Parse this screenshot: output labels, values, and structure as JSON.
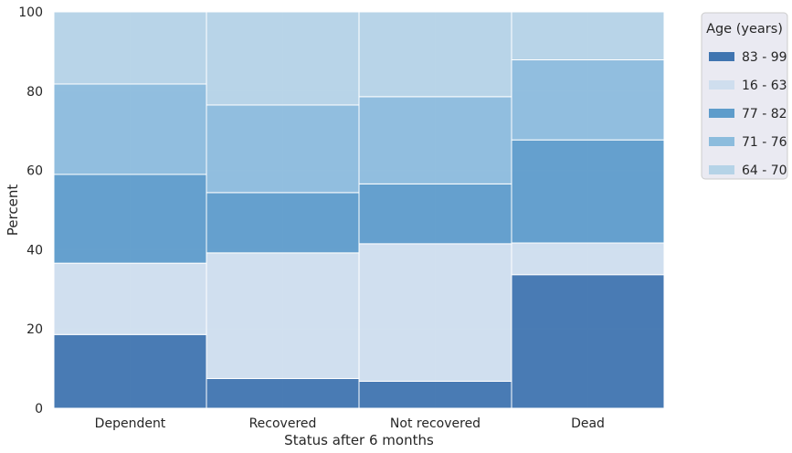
{
  "chart_data": {
    "type": "bar",
    "stacked": true,
    "normalized_percent": true,
    "categories": [
      "Dependent",
      "Recovered",
      "Not recovered",
      "Dead"
    ],
    "xlabel": "Status after 6 months",
    "ylabel": "Percent",
    "ylim": [
      0,
      100
    ],
    "yticks": [
      0,
      20,
      40,
      60,
      80,
      100
    ],
    "grid": true,
    "legend": {
      "title": "Age (years)",
      "placement": "right, outside plot"
    },
    "series": [
      {
        "name": "83 - 99",
        "color": "#4075b0",
        "values": [
          18.6,
          7.5,
          6.8,
          33.7
        ]
      },
      {
        "name": "16 - 63",
        "color": "#cfdeee",
        "values": [
          18.0,
          31.7,
          34.7,
          8.0
        ]
      },
      {
        "name": "77 - 82",
        "color": "#5e9ccb",
        "values": [
          22.4,
          15.2,
          15.1,
          26.0
        ]
      },
      {
        "name": "71 - 76",
        "color": "#8cbcdd",
        "values": [
          22.8,
          22.1,
          22.0,
          20.2
        ]
      },
      {
        "name": "64 - 70",
        "color": "#b5d3e7",
        "values": [
          18.2,
          23.5,
          21.4,
          12.1
        ]
      }
    ]
  }
}
